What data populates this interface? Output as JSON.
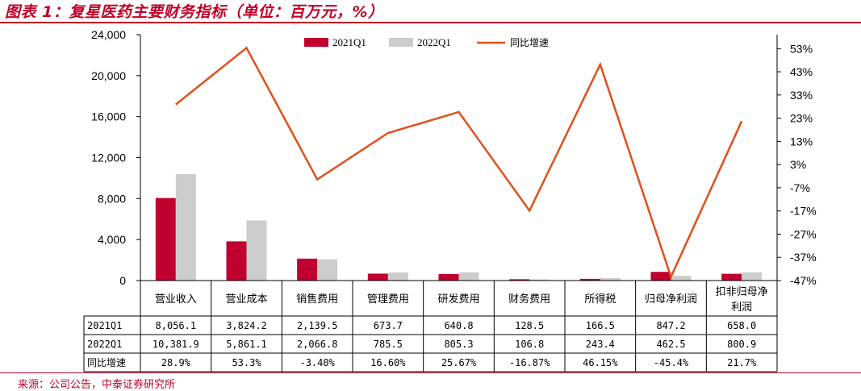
{
  "header": {
    "title": "图表 1：复星医药主要财务指标（单位：百万元，%）"
  },
  "footer": {
    "source": "来源：公司公告，中泰证券研究所"
  },
  "colors": {
    "series_2021": "#c0002e",
    "series_2022": "#cccccc",
    "line": "#e0501a",
    "accent": "#c00028"
  },
  "chart_data": {
    "type": "bar",
    "categories": [
      "营业收入",
      "营业成本",
      "销售费用",
      "管理费用",
      "研发费用",
      "财务费用",
      "所得税",
      "归母净利润",
      "扣非归母净利润"
    ],
    "category_lines": [
      [
        "营业收入"
      ],
      [
        "营业成本"
      ],
      [
        "销售费用"
      ],
      [
        "管理费用"
      ],
      [
        "研发费用"
      ],
      [
        "财务费用"
      ],
      [
        "所得税"
      ],
      [
        "归母净利润"
      ],
      [
        "扣非归母净",
        "利润"
      ]
    ],
    "series": [
      {
        "name": "2021Q1",
        "type": "bar",
        "axis": "left",
        "values": [
          8056.1,
          3824.2,
          2139.5,
          673.7,
          640.8,
          128.5,
          166.5,
          847.2,
          658.0
        ]
      },
      {
        "name": "2022Q1",
        "type": "bar",
        "axis": "left",
        "values": [
          10381.9,
          5861.1,
          2066.8,
          785.5,
          805.3,
          106.8,
          243.4,
          462.5,
          800.9
        ]
      },
      {
        "name": "同比增速",
        "type": "line",
        "axis": "right",
        "values": [
          28.9,
          53.3,
          -3.4,
          16.6,
          25.67,
          -16.87,
          46.15,
          -45.4,
          21.7
        ]
      }
    ],
    "y_left": {
      "min": 0,
      "max": 24000,
      "ticks": [
        "0",
        "4,000",
        "8,000",
        "12,000",
        "16,000",
        "20,000",
        "24,000"
      ]
    },
    "y_right": {
      "min": -47,
      "max": 59,
      "ticks": [
        "-47%",
        "-37%",
        "-27%",
        "-17%",
        "-7%",
        "3%",
        "13%",
        "23%",
        "33%",
        "43%",
        "53%"
      ],
      "tick_values": [
        -47,
        -37,
        -27,
        -17,
        -7,
        3,
        13,
        23,
        33,
        43,
        53
      ]
    },
    "table": {
      "rows": [
        {
          "label": "2021Q1",
          "cells": [
            "8,056.1",
            "3,824.2",
            "2,139.5",
            "673.7",
            "640.8",
            "128.5",
            "166.5",
            "847.2",
            "658.0"
          ]
        },
        {
          "label": "2022Q1",
          "cells": [
            "10,381.9",
            "5,861.1",
            "2,066.8",
            "785.5",
            "805.3",
            "106.8",
            "243.4",
            "462.5",
            "800.9"
          ]
        },
        {
          "label": "同比增速",
          "cells": [
            "28.9%",
            "53.3%",
            "-3.40%",
            "16.60%",
            "25.67%",
            "-16.87%",
            "46.15%",
            "-45.4%",
            "21.7%"
          ]
        }
      ]
    },
    "legend_position": "top",
    "grid": false
  }
}
